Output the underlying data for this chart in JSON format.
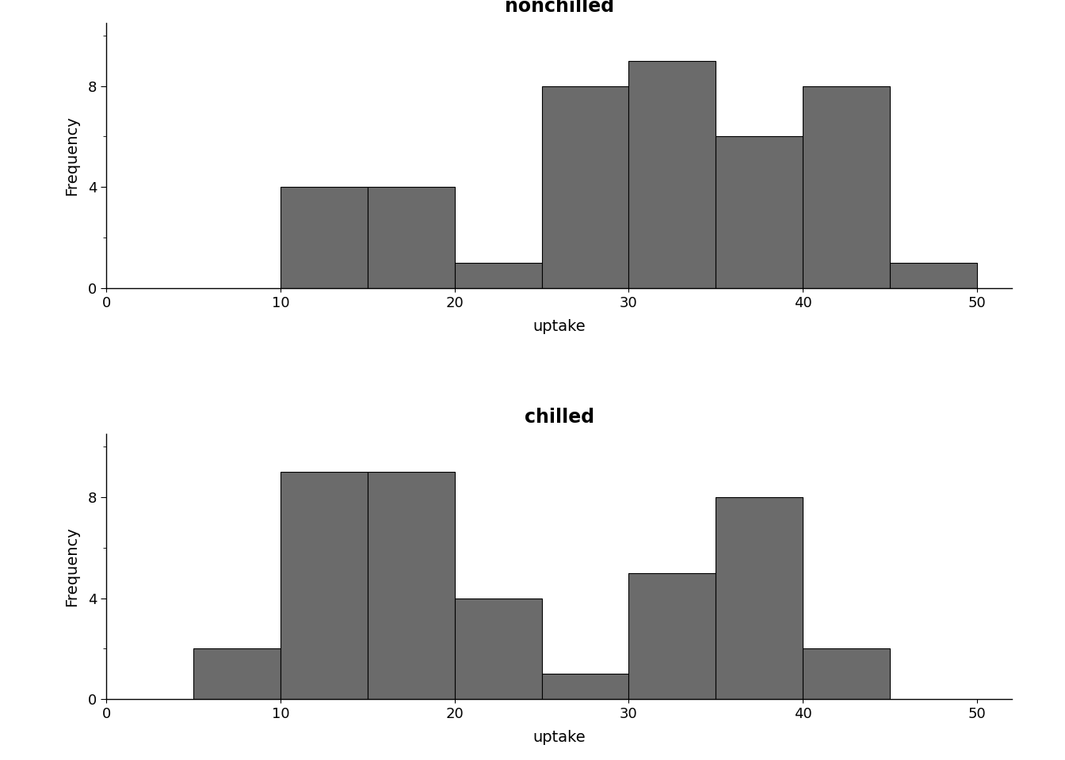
{
  "nonchilled": {
    "title": "nonchilled",
    "bin_edges": [
      10,
      15,
      20,
      25,
      30,
      35,
      40,
      45,
      50
    ],
    "counts": [
      4,
      4,
      1,
      8,
      9,
      6,
      8,
      1
    ],
    "xlim": [
      0,
      52
    ],
    "ylim": [
      0,
      10.5
    ],
    "xticks": [
      0,
      10,
      20,
      30,
      40,
      50
    ],
    "yticks_major": [
      0,
      4,
      8
    ],
    "yticks_minor": [
      0,
      2,
      4,
      6,
      8,
      10
    ],
    "xlabel": "uptake",
    "ylabel": "Frequency",
    "bar_color": "#6b6b6b",
    "bar_edge_color": "#000000"
  },
  "chilled": {
    "title": "chilled",
    "bin_edges": [
      5,
      10,
      15,
      20,
      25,
      30,
      35,
      40,
      45
    ],
    "counts": [
      2,
      9,
      9,
      4,
      1,
      5,
      8,
      2
    ],
    "xlim": [
      0,
      52
    ],
    "ylim": [
      0,
      10.5
    ],
    "xticks": [
      0,
      10,
      20,
      30,
      40,
      50
    ],
    "yticks_major": [
      0,
      4,
      8
    ],
    "yticks_minor": [
      0,
      2,
      4,
      6,
      8,
      10
    ],
    "xlabel": "uptake",
    "ylabel": "Frequency",
    "bar_color": "#6b6b6b",
    "bar_edge_color": "#000000"
  },
  "background_color": "#ffffff",
  "title_fontsize": 17,
  "label_fontsize": 14,
  "tick_fontsize": 13,
  "title_fontweight": "bold"
}
